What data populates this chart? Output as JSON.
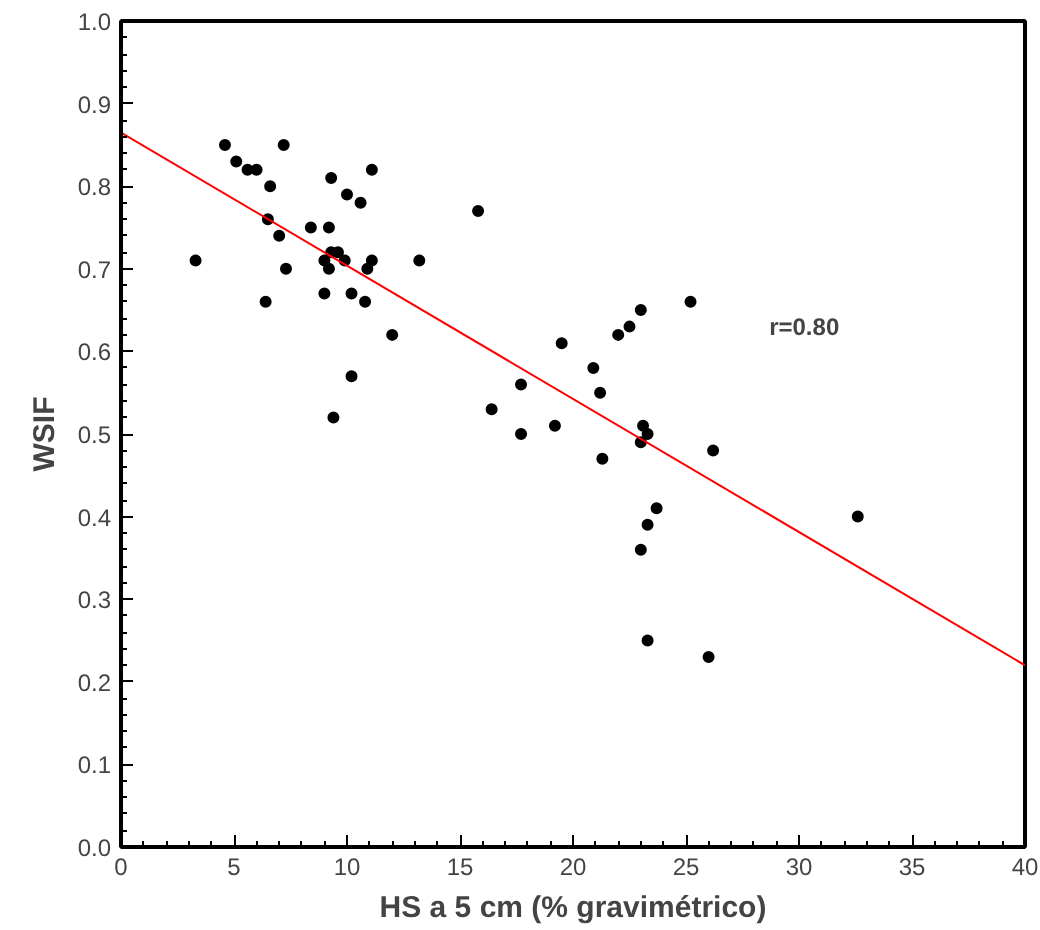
{
  "chart_data": {
    "type": "scatter",
    "xlabel": "HS a 5 cm (% gravimétrico)",
    "ylabel": "WSIF",
    "xlim": [
      0,
      40
    ],
    "ylim": [
      0,
      1
    ],
    "xticks": [
      0,
      5,
      10,
      15,
      20,
      25,
      30,
      35,
      40
    ],
    "yticks": [
      {
        "value": 0,
        "label": "0.0"
      },
      0.1,
      0.2,
      0.3,
      0.4,
      0.5,
      0.6,
      0.7,
      0.8,
      0.9,
      {
        "value": 1,
        "label": "1.0"
      }
    ],
    "grid": false,
    "series": [
      {
        "marker": "circle",
        "color": "#000000",
        "x": [
          3.3,
          4.6,
          5.1,
          5.6,
          6.0,
          7.2,
          6.6,
          6.5,
          7.0,
          7.3,
          6.4,
          8.4,
          9.2,
          9.3,
          10.0,
          10.6,
          11.1,
          9.0,
          9.3,
          9.6,
          9.9,
          9.2,
          9.0,
          10.2,
          10.8,
          10.9,
          11.1,
          10.2,
          9.4,
          12.0,
          13.2,
          15.8,
          16.4,
          17.7,
          17.7,
          19.2,
          19.5,
          20.9,
          21.2,
          21.3,
          22.0,
          22.5,
          23.0,
          23.1,
          23.3,
          23.0,
          23.0,
          23.3,
          23.7,
          23.3,
          25.2,
          26.2,
          26.0,
          32.6
        ],
        "values": [
          0.71,
          0.85,
          0.83,
          0.82,
          0.82,
          0.85,
          0.8,
          0.76,
          0.74,
          0.7,
          0.66,
          0.75,
          0.75,
          0.81,
          0.79,
          0.78,
          0.82,
          0.71,
          0.72,
          0.72,
          0.71,
          0.7,
          0.67,
          0.67,
          0.66,
          0.7,
          0.71,
          0.57,
          0.52,
          0.62,
          0.71,
          0.77,
          0.53,
          0.56,
          0.5,
          0.51,
          0.61,
          0.58,
          0.55,
          0.47,
          0.62,
          0.63,
          0.65,
          0.51,
          0.5,
          0.49,
          0.36,
          0.39,
          0.41,
          0.25,
          0.66,
          0.48,
          0.23,
          0.4
        ]
      },
      {
        "type": "line",
        "marker": "none",
        "color": "#ff0000",
        "x": [
          0,
          40
        ],
        "values": [
          0.865,
          0.22
        ]
      }
    ],
    "annotations": [
      "r=0.80"
    ]
  }
}
